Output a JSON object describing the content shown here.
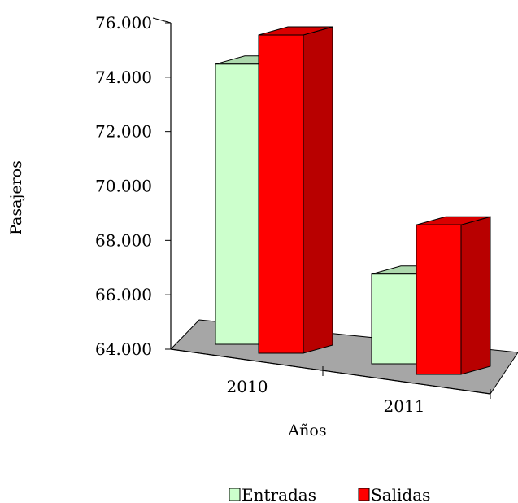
{
  "chart_data": {
    "type": "bar",
    "style": "3d-clustered-column",
    "categories": [
      "2010",
      "2011"
    ],
    "series": [
      {
        "name": "Entradas",
        "color": "#ccffcc",
        "values": [
          74300,
          67300
        ]
      },
      {
        "name": "Salidas",
        "color": "#ff0000",
        "values": [
          75700,
          69500
        ]
      }
    ],
    "xlabel": "Años",
    "ylabel": "Pasajeros",
    "ylim": [
      64000,
      76000
    ],
    "yticks": [
      "64.000",
      "66.000",
      "68.000",
      "70.000",
      "72.000",
      "74.000",
      "76.000"
    ],
    "floor_color": "#a6a6a6",
    "grid": false,
    "legend_position": "bottom"
  }
}
